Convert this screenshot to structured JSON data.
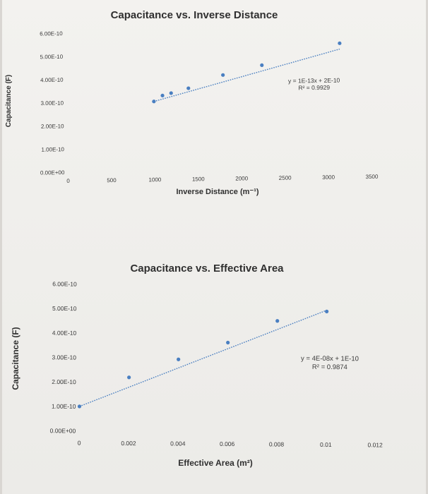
{
  "chart_data": [
    {
      "type": "scatter",
      "title": "Capacitance vs. Inverse Distance",
      "xlabel": "Inverse Distance (m⁻¹)",
      "ylabel": "Capacitance (F)",
      "xlim": [
        0,
        3500
      ],
      "ylim": [
        0,
        6e-10
      ],
      "x_ticks": [
        "0",
        "500",
        "1000",
        "1500",
        "2000",
        "2500",
        "3000",
        "3500"
      ],
      "y_ticks": [
        "0.00E+00",
        "1.00E-10",
        "2.00E-10",
        "3.00E-10",
        "4.00E-10",
        "5.00E-10",
        "6.00E-10"
      ],
      "grid": false,
      "series": [
        {
          "x": [
            1000,
            1100,
            1200,
            1400,
            1800,
            2250,
            3150
          ],
          "y": [
            3e-10,
            3.25e-10,
            3.35e-10,
            3.55e-10,
            4.1e-10,
            4.5e-10,
            5.4e-10
          ]
        }
      ],
      "trendline": {
        "slope": 1e-13,
        "intercept": 2e-10
      },
      "annotations": [
        "y = 1E-13x + 2E-10",
        "R² = 0.9929"
      ]
    },
    {
      "type": "scatter",
      "title": "Capacitance vs. Effective Area",
      "xlabel": "Effective Area (m²)",
      "ylabel": "Capacitance (F)",
      "xlim": [
        0,
        0.012
      ],
      "ylim": [
        0,
        6e-10
      ],
      "x_ticks": [
        "0",
        "0.002",
        "0.004",
        "0.006",
        "0.008",
        "0.01",
        "0.012"
      ],
      "y_ticks": [
        "0.00E+00",
        "1.00E-10",
        "2.00E-10",
        "3.00E-10",
        "4.00E-10",
        "5.00E-10",
        "6.00E-10"
      ],
      "grid": false,
      "series": [
        {
          "x": [
            0,
            0.002,
            0.004,
            0.006,
            0.008,
            0.01
          ],
          "y": [
            1e-10,
            2.2e-10,
            2.95e-10,
            3.65e-10,
            4.55e-10,
            4.95e-10
          ]
        }
      ],
      "trendline": {
        "slope": 4e-08,
        "intercept": 1e-10
      },
      "annotations": [
        "y = 4E-08x + 1E-10",
        "R² = 0.9874"
      ]
    }
  ],
  "colors": {
    "marker": "#4a7fc1",
    "trendline": "#4a7fc1",
    "text": "#2f2f2f"
  }
}
